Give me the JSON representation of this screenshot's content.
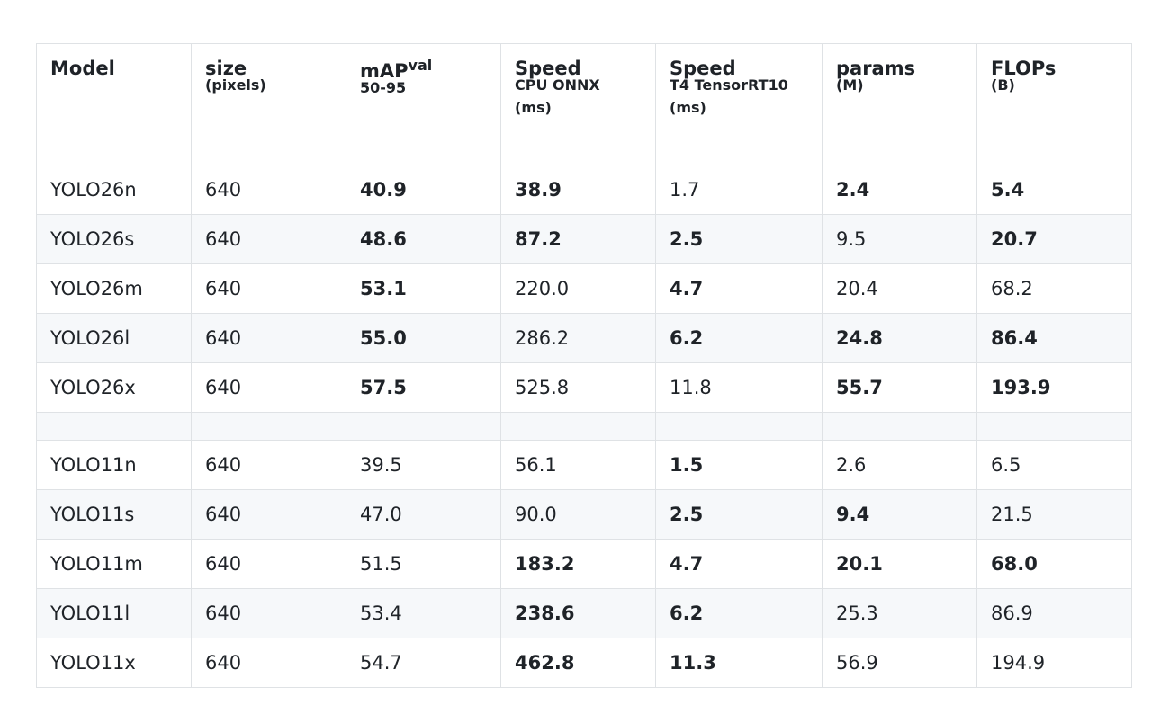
{
  "table": {
    "header": [
      {
        "main": "Model"
      },
      {
        "main": "size",
        "sub": "(pixels)"
      },
      {
        "main": "mAP",
        "sup": "val",
        "sub": "50-95"
      },
      {
        "main": "Speed",
        "sub": "CPU ONNX",
        "extra": "(ms)"
      },
      {
        "main": "Speed",
        "sub": "T4 TensorRT10",
        "extra": "(ms)"
      },
      {
        "main": "params",
        "sub": "(M)"
      },
      {
        "main": "FLOPs",
        "sub": "(B)"
      }
    ],
    "groups": [
      {
        "rows": [
          {
            "cells": [
              "YOLO26n",
              "640",
              "40.9",
              "38.9",
              "1.7",
              "2.4",
              "5.4"
            ],
            "bold": [
              2,
              3,
              5,
              6
            ]
          },
          {
            "cells": [
              "YOLO26s",
              "640",
              "48.6",
              "87.2",
              "2.5",
              "9.5",
              "20.7"
            ],
            "bold": [
              2,
              3,
              4,
              6
            ]
          },
          {
            "cells": [
              "YOLO26m",
              "640",
              "53.1",
              "220.0",
              "4.7",
              "20.4",
              "68.2"
            ],
            "bold": [
              2,
              4
            ]
          },
          {
            "cells": [
              "YOLO26l",
              "640",
              "55.0",
              "286.2",
              "6.2",
              "24.8",
              "86.4"
            ],
            "bold": [
              2,
              4,
              5,
              6
            ]
          },
          {
            "cells": [
              "YOLO26x",
              "640",
              "57.5",
              "525.8",
              "11.8",
              "55.7",
              "193.9"
            ],
            "bold": [
              2,
              5,
              6
            ]
          }
        ]
      },
      {
        "rows": [
          {
            "cells": [
              "YOLO11n",
              "640",
              "39.5",
              "56.1",
              "1.5",
              "2.6",
              "6.5"
            ],
            "bold": [
              4
            ]
          },
          {
            "cells": [
              "YOLO11s",
              "640",
              "47.0",
              "90.0",
              "2.5",
              "9.4",
              "21.5"
            ],
            "bold": [
              4,
              5
            ]
          },
          {
            "cells": [
              "YOLO11m",
              "640",
              "51.5",
              "183.2",
              "4.7",
              "20.1",
              "68.0"
            ],
            "bold": [
              3,
              4,
              5,
              6
            ]
          },
          {
            "cells": [
              "YOLO11l",
              "640",
              "53.4",
              "238.6",
              "6.2",
              "25.3",
              "86.9"
            ],
            "bold": [
              3,
              4
            ]
          },
          {
            "cells": [
              "YOLO11x",
              "640",
              "54.7",
              "462.8",
              "11.3",
              "56.9",
              "194.9"
            ],
            "bold": [
              3,
              4
            ]
          }
        ]
      }
    ]
  }
}
